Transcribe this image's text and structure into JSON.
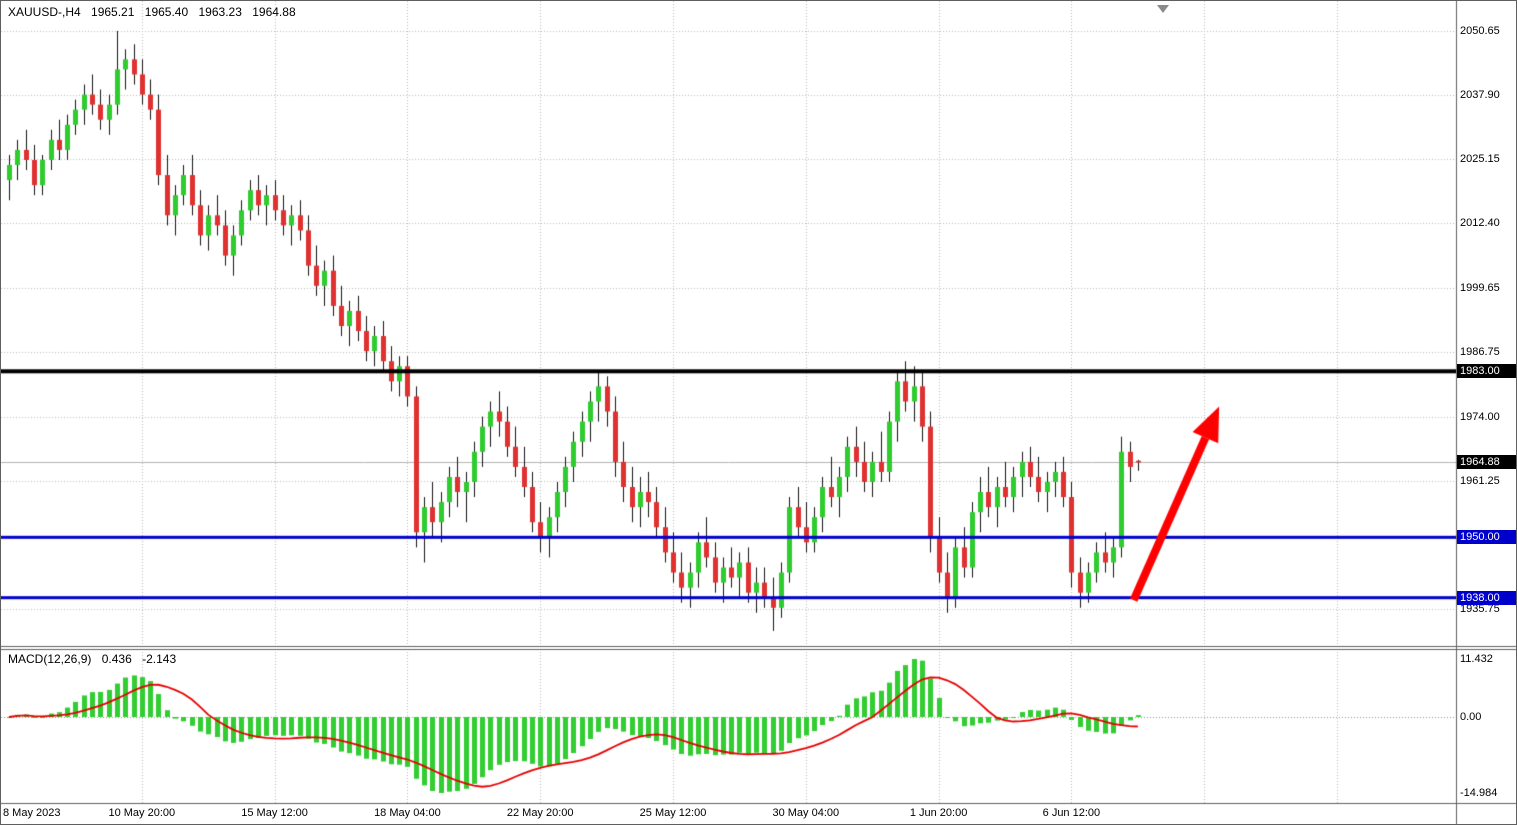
{
  "header": {
    "symbol_period": "XAUUSD-,H4",
    "open": "1965.21",
    "high": "1965.40",
    "low": "1963.23",
    "close": "1964.88"
  },
  "indicator_header": {
    "name": "MACD(12,26,9)",
    "main_value": "0.436",
    "signal_value": "-2.143"
  },
  "colors": {
    "background": "#ffffff",
    "grid": "#bdbdbd",
    "border": "#5f5f5f",
    "axis_text": "#000000"
  },
  "shift_marker": {
    "bar": 139,
    "color": "#8a8a8a"
  },
  "annotations": [
    {
      "type": "arrow",
      "color": "#FF0000",
      "from": {
        "bar": 135.5,
        "price": 1937.5
      },
      "to": {
        "bar": 145.8,
        "price": 1976.0
      }
    }
  ],
  "chart_data": [
    {
      "type": "candlestick",
      "symbol": "XAUUSD-",
      "timeframe": "H4",
      "ylim": [
        1928.2,
        2056.6
      ],
      "bull_color": "#2ECC2E",
      "bear_color": "#E03131",
      "wick_color": "#151515",
      "y_ticks": [
        {
          "value": 2050.65,
          "label": "2050.65"
        },
        {
          "value": 2037.9,
          "label": "2037.90"
        },
        {
          "value": 2025.15,
          "label": "2025.15"
        },
        {
          "value": 2012.4,
          "label": "2012.40"
        },
        {
          "value": 1999.65,
          "label": "1999.65"
        },
        {
          "value": 1986.75,
          "label": "1986.75"
        },
        {
          "value": 1974.0,
          "label": "1974.00"
        },
        {
          "value": 1961.25,
          "label": "1961.25"
        },
        {
          "value": 1935.75,
          "label": "1935.75"
        }
      ],
      "x_ticks": [
        {
          "bar": 0,
          "label": "8 May 2023"
        },
        {
          "bar": 16,
          "label": "10 May 20:00"
        },
        {
          "bar": 32,
          "label": "15 May 12:00"
        },
        {
          "bar": 48,
          "label": "18 May 04:00"
        },
        {
          "bar": 64,
          "label": "22 May 20:00"
        },
        {
          "bar": 80,
          "label": "25 May 12:00"
        },
        {
          "bar": 96,
          "label": "30 May 04:00"
        },
        {
          "bar": 112,
          "label": "1 Jun 20:00"
        },
        {
          "bar": 128,
          "label": "6 Jun 12:00"
        }
      ],
      "levels": [
        {
          "price": 1983.0,
          "label": "1983.00",
          "color": "#000000",
          "line_width": 4
        },
        {
          "price": 1950.0,
          "label": "1950.00",
          "color": "#0000CC",
          "line_width": 3
        },
        {
          "price": 1938.0,
          "label": "1938.00",
          "color": "#0000CC",
          "line_width": 3
        }
      ],
      "current_price": {
        "value": 1964.88,
        "label": "1964.88",
        "badge_bg": "#000000",
        "line_color": "#b4b4b4"
      },
      "ohlc": [
        [
          2021,
          2026,
          2017,
          2024
        ],
        [
          2024,
          2029,
          2021,
          2027
        ],
        [
          2027,
          2031,
          2023,
          2025
        ],
        [
          2025,
          2028,
          2018,
          2020
        ],
        [
          2020,
          2026,
          2018,
          2025
        ],
        [
          2025,
          2031,
          2023,
          2029
        ],
        [
          2029,
          2033,
          2025,
          2027
        ],
        [
          2027,
          2034,
          2025,
          2032
        ],
        [
          2032,
          2037,
          2030,
          2035
        ],
        [
          2035,
          2040,
          2032,
          2038
        ],
        [
          2038,
          2042,
          2034,
          2036
        ],
        [
          2036,
          2039,
          2031,
          2033
        ],
        [
          2033,
          2038,
          2030,
          2036
        ],
        [
          2036,
          2050.65,
          2034,
          2043
        ],
        [
          2043,
          2047,
          2039,
          2045
        ],
        [
          2045,
          2048,
          2040,
          2042
        ],
        [
          2042,
          2045,
          2036,
          2038
        ],
        [
          2038,
          2041,
          2033,
          2035
        ],
        [
          2035,
          2038,
          2020,
          2022
        ],
        [
          2022,
          2026,
          2012,
          2014
        ],
        [
          2014,
          2020,
          2010,
          2018
        ],
        [
          2018,
          2024,
          2016,
          2022
        ],
        [
          2022,
          2026,
          2014,
          2016
        ],
        [
          2016,
          2019,
          2008,
          2010
        ],
        [
          2010,
          2016,
          2007,
          2014
        ],
        [
          2014,
          2018,
          2010,
          2012
        ],
        [
          2012,
          2015,
          2004,
          2006
        ],
        [
          2006,
          2012,
          2002,
          2010
        ],
        [
          2010,
          2017,
          2008,
          2015
        ],
        [
          2015,
          2021,
          2013,
          2019
        ],
        [
          2019,
          2022,
          2014,
          2016
        ],
        [
          2016,
          2020,
          2012,
          2018
        ],
        [
          2018,
          2021,
          2013,
          2015
        ],
        [
          2015,
          2018,
          2010,
          2012
        ],
        [
          2012,
          2016,
          2008,
          2014
        ],
        [
          2014,
          2017,
          2009,
          2011
        ],
        [
          2011,
          2014,
          2002,
          2004
        ],
        [
          2004,
          2008,
          1998,
          2000
        ],
        [
          2000,
          2005,
          1996,
          2003
        ],
        [
          2003,
          2006,
          1994,
          1996
        ],
        [
          1996,
          2000,
          1990,
          1992
        ],
        [
          1992,
          1997,
          1988,
          1995
        ],
        [
          1995,
          1998,
          1989,
          1991
        ],
        [
          1991,
          1994,
          1985,
          1987
        ],
        [
          1987,
          1992,
          1984,
          1990
        ],
        [
          1990,
          1993,
          1983,
          1985
        ],
        [
          1985,
          1988,
          1979,
          1981
        ],
        [
          1981,
          1986,
          1978,
          1984
        ],
        [
          1984,
          1986,
          1976,
          1978
        ],
        [
          1978,
          1980,
          1948,
          1951
        ],
        [
          1951,
          1958,
          1945,
          1956
        ],
        [
          1956,
          1961,
          1950,
          1953
        ],
        [
          1953,
          1959,
          1949,
          1957
        ],
        [
          1957,
          1964,
          1954,
          1962
        ],
        [
          1962,
          1966,
          1956,
          1959
        ],
        [
          1959,
          1963,
          1953,
          1961
        ],
        [
          1961,
          1969,
          1958,
          1967
        ],
        [
          1967,
          1974,
          1964,
          1972
        ],
        [
          1972,
          1977,
          1968,
          1975
        ],
        [
          1975,
          1979,
          1970,
          1973
        ],
        [
          1973,
          1976,
          1966,
          1968
        ],
        [
          1968,
          1972,
          1962,
          1964
        ],
        [
          1964,
          1968,
          1958,
          1960
        ],
        [
          1960,
          1963,
          1951,
          1953
        ],
        [
          1953,
          1957,
          1947,
          1950
        ],
        [
          1950,
          1956,
          1946,
          1954
        ],
        [
          1954,
          1961,
          1951,
          1959
        ],
        [
          1959,
          1966,
          1956,
          1964
        ],
        [
          1964,
          1971,
          1961,
          1969
        ],
        [
          1969,
          1975,
          1966,
          1973
        ],
        [
          1973,
          1979,
          1969,
          1977
        ],
        [
          1977,
          1983,
          1973,
          1980
        ],
        [
          1980,
          1982,
          1972,
          1975
        ],
        [
          1975,
          1978,
          1962,
          1965
        ],
        [
          1965,
          1969,
          1957,
          1960
        ],
        [
          1960,
          1964,
          1953,
          1956
        ],
        [
          1956,
          1962,
          1952,
          1959
        ],
        [
          1959,
          1963,
          1954,
          1957
        ],
        [
          1957,
          1960,
          1950,
          1952
        ],
        [
          1952,
          1956,
          1945,
          1947
        ],
        [
          1947,
          1951,
          1941,
          1943
        ],
        [
          1943,
          1947,
          1937,
          1940
        ],
        [
          1940,
          1945,
          1936,
          1943
        ],
        [
          1943,
          1951,
          1940,
          1949
        ],
        [
          1949,
          1954,
          1944,
          1946
        ],
        [
          1946,
          1949,
          1939,
          1941
        ],
        [
          1941,
          1946,
          1937,
          1944
        ],
        [
          1944,
          1948,
          1940,
          1942
        ],
        [
          1942,
          1947,
          1938,
          1945
        ],
        [
          1945,
          1948,
          1937,
          1939
        ],
        [
          1939,
          1944,
          1935,
          1941
        ],
        [
          1941,
          1944,
          1936,
          1938
        ],
        [
          1938,
          1942,
          1931.4,
          1936
        ],
        [
          1936,
          1945,
          1934,
          1943
        ],
        [
          1943,
          1958,
          1941,
          1956
        ],
        [
          1956,
          1960,
          1950,
          1952
        ],
        [
          1952,
          1957,
          1947,
          1949
        ],
        [
          1949,
          1956,
          1947,
          1954
        ],
        [
          1954,
          1962,
          1951,
          1960
        ],
        [
          1960,
          1966,
          1956,
          1958
        ],
        [
          1958,
          1964,
          1954,
          1962
        ],
        [
          1962,
          1970,
          1959,
          1968
        ],
        [
          1968,
          1972,
          1962,
          1965
        ],
        [
          1965,
          1969,
          1959,
          1961
        ],
        [
          1961,
          1967,
          1958,
          1965
        ],
        [
          1965,
          1971,
          1961,
          1963
        ],
        [
          1963,
          1975,
          1961,
          1973
        ],
        [
          1973,
          1983,
          1969,
          1981
        ],
        [
          1981,
          1985,
          1975,
          1977
        ],
        [
          1977,
          1984,
          1973,
          1980
        ],
        [
          1980,
          1983,
          1969,
          1972
        ],
        [
          1972,
          1975,
          1947,
          1950
        ],
        [
          1950,
          1954,
          1941,
          1943
        ],
        [
          1943,
          1947,
          1935,
          1938
        ],
        [
          1938,
          1950,
          1936,
          1948
        ],
        [
          1948,
          1952,
          1942,
          1944
        ],
        [
          1944,
          1957,
          1942,
          1955
        ],
        [
          1955,
          1962,
          1951,
          1959
        ],
        [
          1959,
          1964,
          1954,
          1956
        ],
        [
          1956,
          1962,
          1952,
          1960
        ],
        [
          1960,
          1965,
          1956,
          1958
        ],
        [
          1958,
          1964,
          1955,
          1962
        ],
        [
          1962,
          1967,
          1958,
          1965
        ],
        [
          1965,
          1968,
          1960,
          1962
        ],
        [
          1962,
          1966,
          1957,
          1959
        ],
        [
          1959,
          1963,
          1955,
          1961
        ],
        [
          1961,
          1965,
          1958,
          1963
        ],
        [
          1963,
          1966,
          1956,
          1958
        ],
        [
          1958,
          1961,
          1940,
          1943
        ],
        [
          1943,
          1946,
          1936,
          1939
        ],
        [
          1939,
          1945,
          1937,
          1943
        ],
        [
          1943,
          1949,
          1941,
          1947
        ],
        [
          1947,
          1951,
          1943,
          1945
        ],
        [
          1945,
          1950,
          1942,
          1948
        ],
        [
          1948,
          1970,
          1946,
          1967
        ],
        [
          1967,
          1969,
          1961,
          1964
        ],
        [
          1965.21,
          1965.4,
          1963.23,
          1964.88
        ]
      ]
    },
    {
      "type": "macd",
      "label": "MACD(12,26,9)",
      "params": {
        "fast": 12,
        "slow": 26,
        "signal": 9
      },
      "last_main": 0.436,
      "last_signal": -2.143,
      "ylim": [
        -14.984,
        11.432
      ],
      "axis_ticks": [
        {
          "label": "11.432",
          "pos": "top"
        },
        {
          "label": "0.00",
          "pos": "zero"
        },
        {
          "label": "-14.984",
          "pos": "bottom"
        }
      ],
      "histogram_color": "#32CD32",
      "signal_color": "#E60000"
    }
  ]
}
